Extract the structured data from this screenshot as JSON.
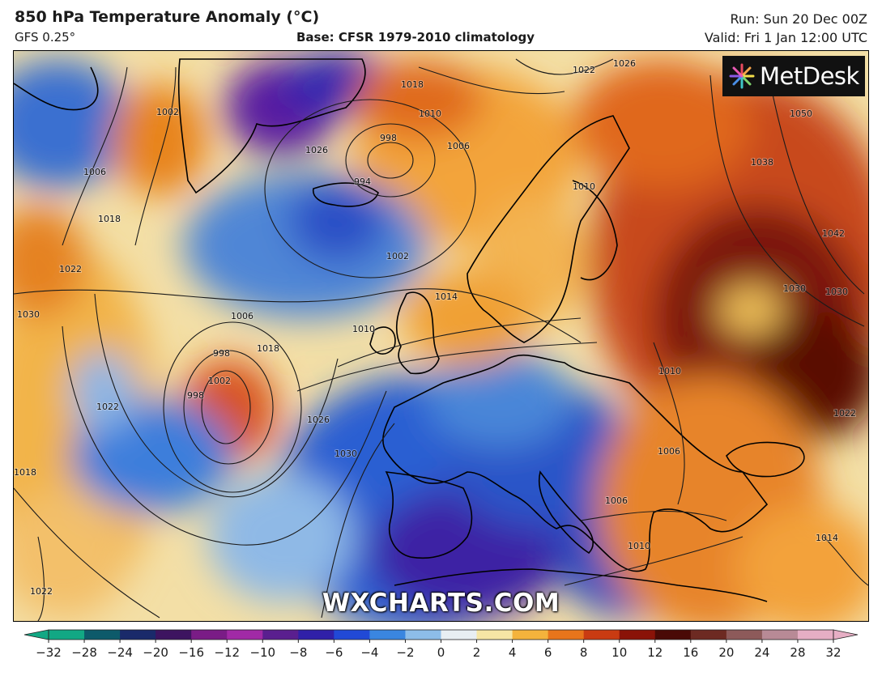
{
  "header": {
    "title": "850 hPa Temperature Anomaly (°C)",
    "model": "GFS 0.25°",
    "base": "Base: CFSR 1979-2010 climatology",
    "run": "Run: Sun 20 Dec 00Z",
    "valid": "Valid: Fri 1 Jan 12:00 UTC"
  },
  "branding": {
    "logo_text": "MetDesk",
    "watermark": "WXCHARTS.COM"
  },
  "colorbar": {
    "ticks": [
      "−32",
      "−28",
      "−24",
      "−20",
      "−16",
      "−12",
      "−10",
      "−8",
      "−6",
      "−4",
      "−2",
      "0",
      "2",
      "4",
      "6",
      "8",
      "10",
      "12",
      "16",
      "20",
      "24",
      "28",
      "32"
    ],
    "colors": [
      "#12a884",
      "#0d5a6a",
      "#1a2a6a",
      "#3d1460",
      "#7a1c86",
      "#a12aa6",
      "#5a1f8f",
      "#3020a8",
      "#2149d6",
      "#3a86e0",
      "#8dbde9",
      "#e8eef3",
      "#f6e6a5",
      "#f4b33c",
      "#e8751b",
      "#c93b12",
      "#8a1308",
      "#4a0a06",
      "#6d2a22",
      "#8d5a5a",
      "#b88a96",
      "#e6aec4"
    ]
  },
  "map": {
    "isobar_labels": [
      "1022",
      "1026",
      "1018",
      "1002",
      "1010",
      "1006",
      "998",
      "994",
      "1010",
      "1022",
      "1030",
      "1026",
      "1018",
      "1002",
      "1014",
      "1006",
      "1010",
      "1006",
      "998",
      "998",
      "1002",
      "1018",
      "1026",
      "1030",
      "1022",
      "1018",
      "1010",
      "1030",
      "1050",
      "1038",
      "1042",
      "1030",
      "1022",
      "1006",
      "1010",
      "1014",
      "1022",
      "1006"
    ],
    "colors": {
      "cold_deep": "#3b1e9e",
      "cold": "#2f6fd6",
      "cool": "#9cc4ea",
      "neutral": "#f2ecd2",
      "warm": "#f2a33a",
      "hot": "#d5501a",
      "very_hot": "#7a1208"
    }
  }
}
